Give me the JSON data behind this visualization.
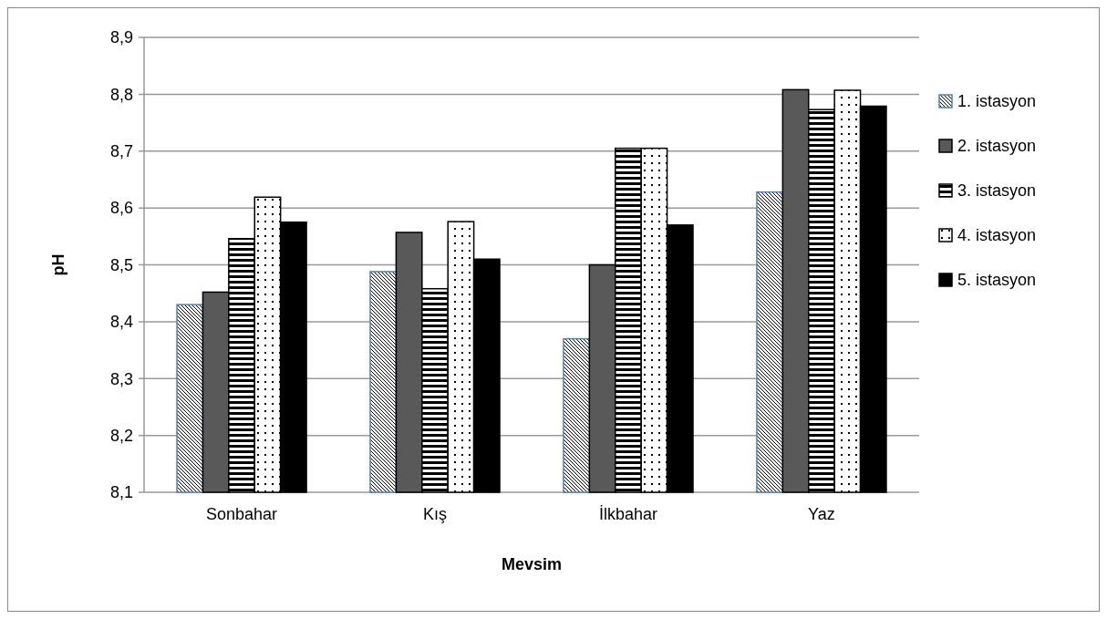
{
  "chart_data": {
    "type": "bar",
    "xlabel": "Mevsim",
    "ylabel": "pH",
    "categories": [
      "Sonbahar",
      "Kış",
      "İlkbahar",
      "Yaz"
    ],
    "series": [
      {
        "name": "1. istasyon",
        "color": "#4f81bd",
        "values": [
          8.43,
          8.488,
          8.37,
          8.628
        ]
      },
      {
        "name": "2. istasyon",
        "color": "#595959",
        "values": [
          8.452,
          8.557,
          8.5,
          8.808
        ]
      },
      {
        "name": "3. istasyon",
        "color": "#000000",
        "values": [
          8.546,
          8.458,
          8.705,
          8.773
        ]
      },
      {
        "name": "4. istasyon",
        "color": "#000000",
        "values": [
          8.619,
          8.576,
          8.705,
          8.807
        ]
      },
      {
        "name": "5. istasyon",
        "color": "#000000",
        "values": [
          8.575,
          8.51,
          8.57,
          8.779
        ]
      }
    ],
    "ylim": [
      8.1,
      8.9
    ],
    "yticks": [
      {
        "value": 8.1,
        "label": "8,1"
      },
      {
        "value": 8.2,
        "label": "8,2"
      },
      {
        "value": 8.3,
        "label": "8,3"
      },
      {
        "value": 8.4,
        "label": "8,4"
      },
      {
        "value": 8.5,
        "label": "8,5"
      },
      {
        "value": 8.6,
        "label": "8,6"
      },
      {
        "value": 8.7,
        "label": "8,7"
      },
      {
        "value": 8.8,
        "label": "8,8"
      },
      {
        "value": 8.9,
        "label": "8,9"
      }
    ],
    "grid": "y",
    "legend": "right"
  }
}
